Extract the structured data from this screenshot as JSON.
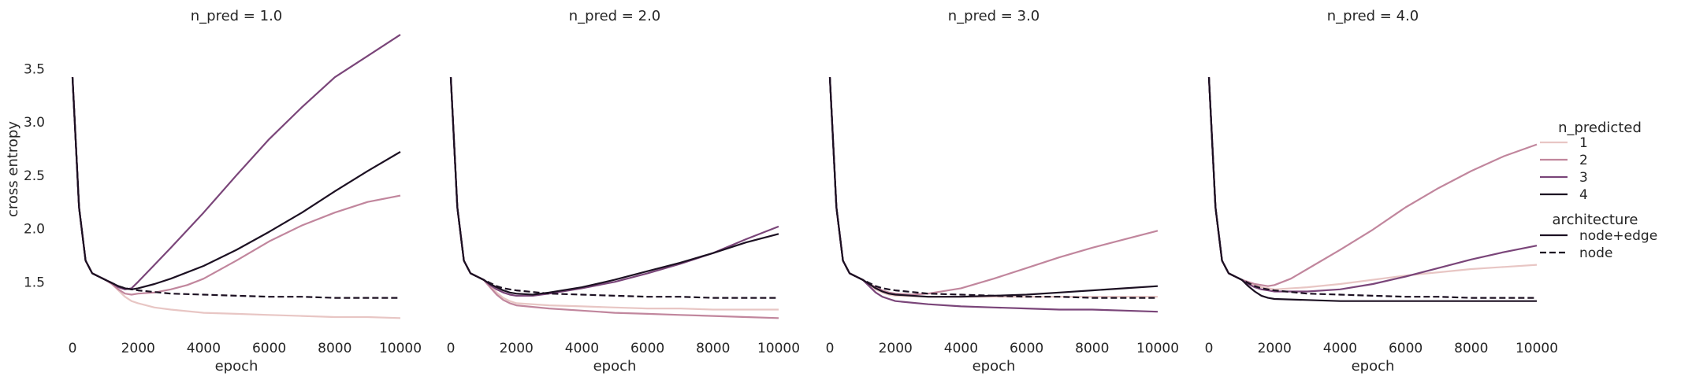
{
  "chart_data": {
    "type": "line",
    "ylabel": "cross entropy",
    "xlabel": "epoch",
    "xlim": [
      0,
      10000
    ],
    "ylim": [
      1.0,
      3.85
    ],
    "xticks": [
      "0",
      "2000",
      "4000",
      "6000",
      "8000",
      "10000"
    ],
    "yticks": [
      "1.5",
      "2.0",
      "2.5",
      "3.0",
      "3.5"
    ],
    "grid": false,
    "legend": {
      "position": "right",
      "hue_title": "n_predicted",
      "hue_items": [
        {
          "label": "1",
          "color": "#e8c6c4"
        },
        {
          "label": "2",
          "color": "#c1869d"
        },
        {
          "label": "3",
          "color": "#7a4579"
        },
        {
          "label": "4",
          "color": "#1c1022"
        }
      ],
      "style_title": "architecture",
      "style_items": [
        {
          "label": "node+edge",
          "dash": "solid"
        },
        {
          "label": "node",
          "dash": "dashed"
        }
      ]
    },
    "panels": [
      {
        "title": "n_pred = 1.0",
        "series": [
          {
            "n_predicted": "1",
            "architecture": "node+edge",
            "x": [
              0,
              200,
              400,
              600,
              800,
              1000,
              1200,
              1400,
              1600,
              1800,
              2000,
              2500,
              3000,
              4000,
              5000,
              6000,
              7000,
              8000,
              9000,
              10000
            ],
            "y": [
              3.42,
              2.2,
              1.7,
              1.58,
              1.55,
              1.52,
              1.48,
              1.42,
              1.36,
              1.32,
              1.3,
              1.26,
              1.24,
              1.21,
              1.2,
              1.19,
              1.18,
              1.17,
              1.17,
              1.16
            ]
          },
          {
            "n_predicted": "2",
            "architecture": "node+edge",
            "x": [
              0,
              200,
              400,
              600,
              800,
              1000,
              1200,
              1400,
              1600,
              1800,
              2000,
              2500,
              3000,
              3500,
              4000,
              5000,
              6000,
              7000,
              8000,
              9000,
              10000
            ],
            "y": [
              3.42,
              2.2,
              1.7,
              1.58,
              1.55,
              1.52,
              1.48,
              1.43,
              1.39,
              1.38,
              1.39,
              1.4,
              1.43,
              1.47,
              1.53,
              1.7,
              1.88,
              2.03,
              2.15,
              2.25,
              2.31
            ]
          },
          {
            "n_predicted": "3",
            "architecture": "node+edge",
            "x": [
              0,
              200,
              400,
              600,
              800,
              1000,
              1200,
              1400,
              1600,
              1800,
              2000,
              2500,
              3000,
              4000,
              5000,
              6000,
              7000,
              8000,
              9000,
              10000
            ],
            "y": [
              3.42,
              2.2,
              1.7,
              1.58,
              1.55,
              1.52,
              1.49,
              1.45,
              1.43,
              1.44,
              1.5,
              1.66,
              1.82,
              2.15,
              2.5,
              2.84,
              3.14,
              3.42,
              3.62,
              3.82
            ]
          },
          {
            "n_predicted": "4",
            "architecture": "node+edge",
            "x": [
              0,
              200,
              400,
              600,
              800,
              1000,
              1200,
              1400,
              1600,
              1800,
              2000,
              2500,
              3000,
              4000,
              5000,
              6000,
              7000,
              8000,
              9000,
              10000
            ],
            "y": [
              3.42,
              2.2,
              1.7,
              1.58,
              1.55,
              1.52,
              1.49,
              1.46,
              1.44,
              1.43,
              1.44,
              1.48,
              1.53,
              1.65,
              1.8,
              1.97,
              2.15,
              2.35,
              2.54,
              2.72
            ]
          },
          {
            "n_predicted": "4",
            "architecture": "node",
            "x": [
              0,
              200,
              400,
              600,
              800,
              1000,
              1200,
              1400,
              1600,
              1800,
              2000,
              3000,
              4000,
              5000,
              6000,
              7000,
              8000,
              9000,
              10000
            ],
            "y": [
              3.42,
              2.2,
              1.7,
              1.58,
              1.55,
              1.52,
              1.49,
              1.46,
              1.44,
              1.43,
              1.42,
              1.39,
              1.38,
              1.37,
              1.36,
              1.36,
              1.35,
              1.35,
              1.35
            ]
          }
        ]
      },
      {
        "title": "n_pred = 2.0",
        "series": [
          {
            "n_predicted": "1",
            "architecture": "node+edge",
            "x": [
              0,
              200,
              400,
              600,
              800,
              1000,
              1200,
              1400,
              1600,
              1800,
              2000,
              3000,
              4000,
              5000,
              6000,
              7000,
              8000,
              9000,
              10000
            ],
            "y": [
              3.42,
              2.2,
              1.7,
              1.58,
              1.55,
              1.52,
              1.46,
              1.4,
              1.35,
              1.32,
              1.3,
              1.28,
              1.27,
              1.26,
              1.25,
              1.25,
              1.24,
              1.24,
              1.24
            ]
          },
          {
            "n_predicted": "2",
            "architecture": "node+edge",
            "x": [
              0,
              200,
              400,
              600,
              800,
              1000,
              1200,
              1400,
              1600,
              1800,
              2000,
              3000,
              4000,
              5000,
              6000,
              7000,
              8000,
              9000,
              10000
            ],
            "y": [
              3.42,
              2.2,
              1.7,
              1.58,
              1.55,
              1.52,
              1.45,
              1.38,
              1.33,
              1.3,
              1.28,
              1.25,
              1.23,
              1.21,
              1.2,
              1.19,
              1.18,
              1.17,
              1.16
            ]
          },
          {
            "n_predicted": "3",
            "architecture": "node+edge",
            "x": [
              0,
              200,
              400,
              600,
              800,
              1000,
              1200,
              1400,
              1600,
              1800,
              2000,
              2500,
              3000,
              4000,
              5000,
              6000,
              7000,
              8000,
              9000,
              10000
            ],
            "y": [
              3.42,
              2.2,
              1.7,
              1.58,
              1.55,
              1.52,
              1.47,
              1.43,
              1.4,
              1.38,
              1.37,
              1.37,
              1.39,
              1.44,
              1.5,
              1.58,
              1.67,
              1.77,
              1.9,
              2.02
            ]
          },
          {
            "n_predicted": "4",
            "architecture": "node+edge",
            "x": [
              0,
              200,
              400,
              600,
              800,
              1000,
              1200,
              1400,
              1600,
              1800,
              2000,
              2500,
              3000,
              4000,
              5000,
              6000,
              7000,
              8000,
              9000,
              10000
            ],
            "y": [
              3.42,
              2.2,
              1.7,
              1.58,
              1.55,
              1.52,
              1.48,
              1.45,
              1.42,
              1.4,
              1.39,
              1.38,
              1.4,
              1.45,
              1.52,
              1.6,
              1.68,
              1.77,
              1.87,
              1.95
            ]
          },
          {
            "n_predicted": "4",
            "architecture": "node",
            "x": [
              0,
              200,
              400,
              600,
              800,
              1000,
              1200,
              1400,
              1600,
              1800,
              2000,
              3000,
              4000,
              5000,
              6000,
              7000,
              8000,
              9000,
              10000
            ],
            "y": [
              3.42,
              2.2,
              1.7,
              1.58,
              1.55,
              1.52,
              1.49,
              1.46,
              1.44,
              1.43,
              1.42,
              1.39,
              1.38,
              1.37,
              1.36,
              1.36,
              1.35,
              1.35,
              1.35
            ]
          }
        ]
      },
      {
        "title": "n_pred = 3.0",
        "series": [
          {
            "n_predicted": "1",
            "architecture": "node+edge",
            "x": [
              0,
              200,
              400,
              600,
              800,
              1000,
              1200,
              1400,
              1600,
              1800,
              2000,
              3000,
              4000,
              5000,
              6000,
              7000,
              8000,
              9000,
              10000
            ],
            "y": [
              3.42,
              2.2,
              1.7,
              1.58,
              1.55,
              1.52,
              1.47,
              1.43,
              1.4,
              1.38,
              1.37,
              1.36,
              1.36,
              1.36,
              1.36,
              1.36,
              1.36,
              1.36,
              1.36
            ]
          },
          {
            "n_predicted": "2",
            "architecture": "node+edge",
            "x": [
              0,
              200,
              400,
              600,
              800,
              1000,
              1200,
              1400,
              1600,
              1800,
              2000,
              2500,
              3000,
              4000,
              5000,
              6000,
              7000,
              8000,
              9000,
              10000
            ],
            "y": [
              3.42,
              2.2,
              1.7,
              1.58,
              1.55,
              1.52,
              1.48,
              1.45,
              1.42,
              1.4,
              1.39,
              1.38,
              1.39,
              1.44,
              1.53,
              1.63,
              1.73,
              1.82,
              1.9,
              1.98
            ]
          },
          {
            "n_predicted": "3",
            "architecture": "node+edge",
            "x": [
              0,
              200,
              400,
              600,
              800,
              1000,
              1200,
              1400,
              1600,
              1800,
              2000,
              3000,
              4000,
              5000,
              6000,
              7000,
              8000,
              9000,
              10000
            ],
            "y": [
              3.42,
              2.2,
              1.7,
              1.58,
              1.55,
              1.52,
              1.46,
              1.4,
              1.36,
              1.34,
              1.32,
              1.29,
              1.27,
              1.26,
              1.25,
              1.24,
              1.24,
              1.23,
              1.22
            ]
          },
          {
            "n_predicted": "4",
            "architecture": "node+edge",
            "x": [
              0,
              200,
              400,
              600,
              800,
              1000,
              1200,
              1400,
              1600,
              1800,
              2000,
              3000,
              4000,
              5000,
              6000,
              7000,
              8000,
              9000,
              10000
            ],
            "y": [
              3.42,
              2.2,
              1.7,
              1.58,
              1.55,
              1.52,
              1.48,
              1.44,
              1.41,
              1.39,
              1.38,
              1.36,
              1.36,
              1.37,
              1.38,
              1.4,
              1.42,
              1.44,
              1.46
            ]
          },
          {
            "n_predicted": "4",
            "architecture": "node",
            "x": [
              0,
              200,
              400,
              600,
              800,
              1000,
              1200,
              1400,
              1600,
              1800,
              2000,
              3000,
              4000,
              5000,
              6000,
              7000,
              8000,
              9000,
              10000
            ],
            "y": [
              3.42,
              2.2,
              1.7,
              1.58,
              1.55,
              1.52,
              1.49,
              1.46,
              1.44,
              1.43,
              1.42,
              1.39,
              1.38,
              1.37,
              1.36,
              1.36,
              1.35,
              1.35,
              1.35
            ]
          }
        ]
      },
      {
        "title": "n_pred = 4.0",
        "series": [
          {
            "n_predicted": "1",
            "architecture": "node+edge",
            "x": [
              0,
              200,
              400,
              600,
              800,
              1000,
              1200,
              1400,
              1600,
              1800,
              2000,
              3000,
              4000,
              5000,
              6000,
              7000,
              8000,
              9000,
              10000
            ],
            "y": [
              3.42,
              2.2,
              1.7,
              1.58,
              1.55,
              1.52,
              1.49,
              1.47,
              1.45,
              1.44,
              1.43,
              1.45,
              1.48,
              1.52,
              1.56,
              1.59,
              1.62,
              1.64,
              1.66
            ]
          },
          {
            "n_predicted": "2",
            "architecture": "node+edge",
            "x": [
              0,
              200,
              400,
              600,
              800,
              1000,
              1200,
              1400,
              1600,
              1800,
              2000,
              2500,
              3000,
              4000,
              5000,
              6000,
              7000,
              8000,
              9000,
              10000
            ],
            "y": [
              3.42,
              2.2,
              1.7,
              1.58,
              1.55,
              1.52,
              1.5,
              1.48,
              1.47,
              1.46,
              1.47,
              1.53,
              1.62,
              1.8,
              1.99,
              2.2,
              2.38,
              2.54,
              2.68,
              2.79
            ]
          },
          {
            "n_predicted": "3",
            "architecture": "node+edge",
            "x": [
              0,
              200,
              400,
              600,
              800,
              1000,
              1200,
              1400,
              1600,
              1800,
              2000,
              3000,
              4000,
              5000,
              6000,
              7000,
              8000,
              9000,
              10000
            ],
            "y": [
              3.42,
              2.2,
              1.7,
              1.58,
              1.55,
              1.52,
              1.48,
              1.45,
              1.43,
              1.42,
              1.41,
              1.41,
              1.43,
              1.48,
              1.55,
              1.63,
              1.71,
              1.78,
              1.84
            ]
          },
          {
            "n_predicted": "4",
            "architecture": "node+edge",
            "x": [
              0,
              200,
              400,
              600,
              800,
              1000,
              1200,
              1400,
              1600,
              1800,
              2000,
              3000,
              4000,
              5000,
              6000,
              7000,
              8000,
              9000,
              10000
            ],
            "y": [
              3.42,
              2.2,
              1.7,
              1.58,
              1.55,
              1.52,
              1.46,
              1.41,
              1.37,
              1.35,
              1.34,
              1.33,
              1.32,
              1.32,
              1.32,
              1.32,
              1.32,
              1.32,
              1.32
            ]
          },
          {
            "n_predicted": "4",
            "architecture": "node",
            "x": [
              0,
              200,
              400,
              600,
              800,
              1000,
              1200,
              1400,
              1600,
              1800,
              2000,
              3000,
              4000,
              5000,
              6000,
              7000,
              8000,
              9000,
              10000
            ],
            "y": [
              3.42,
              2.2,
              1.7,
              1.58,
              1.55,
              1.52,
              1.49,
              1.46,
              1.44,
              1.43,
              1.42,
              1.39,
              1.38,
              1.37,
              1.36,
              1.36,
              1.35,
              1.35,
              1.35
            ]
          }
        ]
      }
    ]
  }
}
